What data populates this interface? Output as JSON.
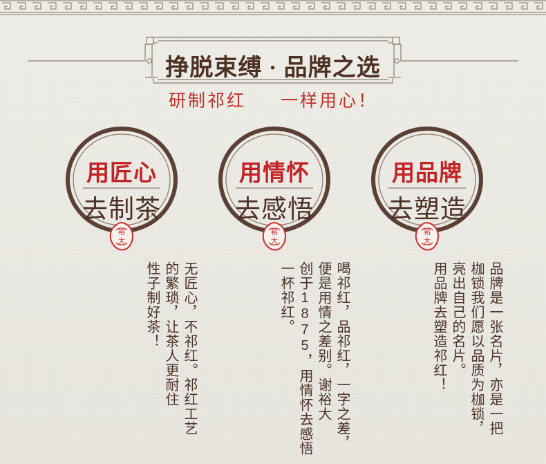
{
  "header": {
    "title_left": "挣脱束缚",
    "title_dot": "·",
    "title_right": "品牌之选",
    "subtitle_left": "研制祁红",
    "subtitle_right": "一样用心！"
  },
  "cards": [
    {
      "title": "用匠心",
      "subtitle": "去制茶",
      "seal_text_1": "裕",
      "seal_text_2": "大",
      "columns": [
        "无匠心，不祁红。祁红工艺",
        "的繁琐，让茶人更耐住",
        "性子制好茶！"
      ]
    },
    {
      "title": "用情怀",
      "subtitle": "去感悟",
      "seal_text_1": "裕",
      "seal_text_2": "大",
      "columns": [
        "喝祁红，品祁红，一字之差，",
        "便是用情之差别。谢裕大",
        "创于1875，用情怀去感悟",
        "一杯祁红。"
      ]
    },
    {
      "title": "用品牌",
      "subtitle": "去塑造",
      "seal_text_1": "裕",
      "seal_text_2": "大",
      "columns": [
        "品牌是一张名片，亦是一把",
        "枷锁我们愿以品质为枷锁，",
        "亮出自己的名片。",
        "用品牌去塑造祁红！"
      ]
    }
  ]
}
